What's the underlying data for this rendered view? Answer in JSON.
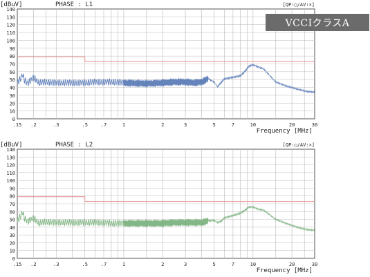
{
  "overlay_label": "VCCIクラスA",
  "chart_data": [
    {
      "type": "line",
      "unit_label": "[dBuV]",
      "phase_label": "PHASE : L1",
      "legend_text": "[QP:○/AV:×]",
      "xlabel": "Frequency [MHz]",
      "x_scale": "log",
      "xlim": [
        0.15,
        30
      ],
      "ylim": [
        0,
        140
      ],
      "y_ticks": [
        0,
        10,
        20,
        30,
        40,
        50,
        60,
        70,
        80,
        90,
        100,
        110,
        120,
        130,
        140
      ],
      "x_tick_labels": [
        ".15",
        ".2",
        ".3",
        ".5",
        ".7",
        "1",
        "2",
        "3",
        "5",
        "7",
        "10",
        "20",
        "30"
      ],
      "limit_line": {
        "color": "#e88a8a",
        "points": [
          [
            0.15,
            79
          ],
          [
            0.5,
            79
          ],
          [
            0.5,
            73
          ],
          [
            30,
            73
          ]
        ]
      },
      "series": [
        {
          "color": "#4a6fb0",
          "points": [
            [
              0.15,
              46
            ],
            [
              0.16,
              52
            ],
            [
              0.165,
              57
            ],
            [
              0.17,
              50
            ],
            [
              0.18,
              45
            ],
            [
              0.2,
              53
            ],
            [
              0.22,
              46
            ],
            [
              0.25,
              47
            ],
            [
              0.3,
              46
            ],
            [
              0.35,
              46
            ],
            [
              0.4,
              46
            ],
            [
              0.45,
              46
            ],
            [
              0.5,
              46
            ],
            [
              0.6,
              47
            ],
            [
              0.7,
              47
            ],
            [
              0.8,
              47
            ],
            [
              1.0,
              46
            ],
            [
              1.5,
              45
            ],
            [
              2.0,
              46
            ],
            [
              2.5,
              47
            ],
            [
              3.0,
              47
            ],
            [
              3.5,
              46
            ],
            [
              4.0,
              47
            ],
            [
              4.5,
              51
            ],
            [
              5.0,
              47
            ],
            [
              5.3,
              41
            ],
            [
              5.7,
              47
            ],
            [
              6.0,
              51
            ],
            [
              7.0,
              53
            ],
            [
              8.0,
              55
            ],
            [
              8.7,
              61
            ],
            [
              9.3,
              67
            ],
            [
              10.0,
              69
            ],
            [
              11.0,
              66
            ],
            [
              12.0,
              64
            ],
            [
              13.0,
              58
            ],
            [
              15.0,
              47
            ],
            [
              18.0,
              42
            ],
            [
              22.0,
              38
            ],
            [
              26.0,
              35
            ],
            [
              30.0,
              34
            ]
          ]
        }
      ]
    },
    {
      "type": "line",
      "unit_label": "[dBuV]",
      "phase_label": "PHASE : L2",
      "legend_text": "[QP:○/AV:×]",
      "xlabel": "Frequency [MHz]",
      "x_scale": "log",
      "xlim": [
        0.15,
        30
      ],
      "ylim": [
        0,
        140
      ],
      "y_ticks": [
        0,
        10,
        20,
        30,
        40,
        50,
        60,
        70,
        80,
        90,
        100,
        110,
        120,
        130,
        140
      ],
      "x_tick_labels": [
        ".15",
        ".2",
        ".3",
        ".5",
        ".7",
        "1",
        "2",
        "3",
        "5",
        "7",
        "10",
        "20",
        "30"
      ],
      "limit_line": {
        "color": "#e88a8a",
        "points": [
          [
            0.15,
            79
          ],
          [
            0.5,
            79
          ],
          [
            0.5,
            73
          ],
          [
            30,
            73
          ]
        ]
      },
      "series": [
        {
          "color": "#6eaa72",
          "points": [
            [
              0.15,
              48
            ],
            [
              0.16,
              55
            ],
            [
              0.165,
              60
            ],
            [
              0.17,
              52
            ],
            [
              0.18,
              47
            ],
            [
              0.2,
              52
            ],
            [
              0.22,
              45
            ],
            [
              0.25,
              47
            ],
            [
              0.3,
              46
            ],
            [
              0.35,
              46
            ],
            [
              0.4,
              46
            ],
            [
              0.45,
              46
            ],
            [
              0.5,
              46
            ],
            [
              0.6,
              46
            ],
            [
              0.7,
              46
            ],
            [
              0.8,
              45
            ],
            [
              1.0,
              45
            ],
            [
              1.5,
              45
            ],
            [
              2.0,
              45
            ],
            [
              2.5,
              46
            ],
            [
              3.0,
              46
            ],
            [
              3.5,
              46
            ],
            [
              4.0,
              46
            ],
            [
              4.5,
              48
            ],
            [
              5.0,
              49
            ],
            [
              5.3,
              46
            ],
            [
              5.7,
              48
            ],
            [
              6.0,
              52
            ],
            [
              7.0,
              55
            ],
            [
              8.0,
              58
            ],
            [
              8.7,
              62
            ],
            [
              9.3,
              66
            ],
            [
              10.0,
              66
            ],
            [
              11.0,
              63
            ],
            [
              12.0,
              62
            ],
            [
              13.0,
              58
            ],
            [
              15.0,
              50
            ],
            [
              18.0,
              45
            ],
            [
              22.0,
              40
            ],
            [
              26.0,
              37
            ],
            [
              30.0,
              36
            ]
          ]
        }
      ]
    }
  ]
}
